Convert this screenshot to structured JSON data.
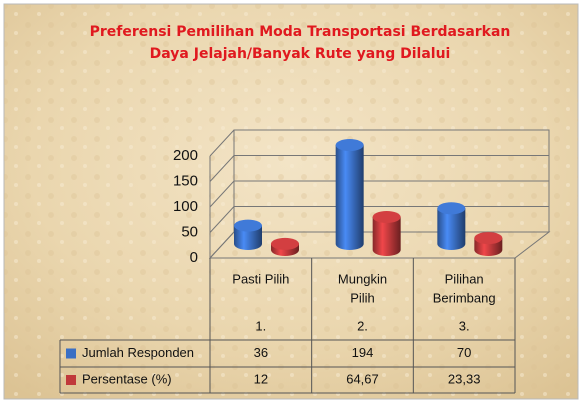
{
  "chart_data": {
    "type": "bar",
    "title": [
      "Preferensi Pemilihan Moda Transportasi Berdasarkan",
      "Daya Jelajah/Banyak Rute yang Dilalui"
    ],
    "categories": [
      [
        "Pasti Pilih"
      ],
      [
        "Mungkin",
        "Pilih"
      ],
      [
        "Pilihan",
        "Berimbang"
      ]
    ],
    "category_numbers": [
      "1.",
      "2.",
      "3."
    ],
    "series": [
      {
        "name": "Jumlah Responden",
        "color": "#3a6fc4",
        "values": [
          36,
          194,
          70
        ]
      },
      {
        "name": "Persentase (%)",
        "color": "#c0393b",
        "values": [
          12,
          64.67,
          23.33
        ],
        "value_labels": [
          "12",
          "64,67",
          "23,33"
        ]
      }
    ],
    "ylim": [
      0,
      200
    ],
    "yticks": [
      0,
      50,
      100,
      150,
      200
    ],
    "grid": true
  }
}
